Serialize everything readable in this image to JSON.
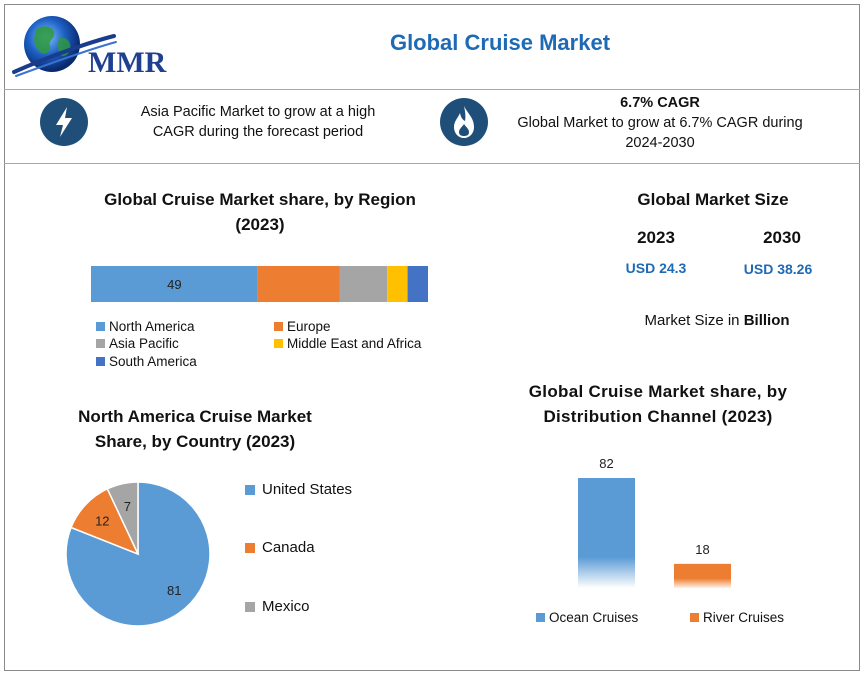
{
  "header": {
    "logo_text": "MMR",
    "title": "Global Cruise Market"
  },
  "highlights": [
    {
      "icon": "lightning-icon",
      "lines": [
        "Asia Pacific Market to grow at a high",
        "CAGR during the forecast period"
      ]
    },
    {
      "icon": "flame-icon",
      "heading": "6.7% CAGR",
      "lines": [
        "Global Market to grow at 6.7% CAGR during",
        "2024-2030"
      ]
    }
  ],
  "market_size": {
    "title": "Global Market Size",
    "years": [
      "2023",
      "2030"
    ],
    "values": [
      "USD 24.3",
      "USD 38.26"
    ],
    "note_prefix": "Market Size in ",
    "note_bold": "Billion"
  },
  "colors": {
    "blue": "#5b9bd5",
    "orange": "#ed7d31",
    "gray": "#a5a5a5",
    "yellow": "#ffc000",
    "dark_blue": "#4472c4",
    "title_blue": "#1f6ab5",
    "icon_navy": "#1f4e79"
  },
  "chart_data": [
    {
      "type": "bar",
      "orientation": "horizontal-stacked",
      "title_lines": [
        "Global Cruise Market share, by Region",
        "(2023)"
      ],
      "categories": [
        "North America",
        "Europe",
        "Asia Pacific",
        "Middle East and Africa",
        "South America"
      ],
      "values": [
        49,
        24,
        14,
        6,
        6
      ],
      "data_labels": [
        "49",
        "",
        "",
        "",
        ""
      ],
      "colors": [
        "#5b9bd5",
        "#ed7d31",
        "#a5a5a5",
        "#ffc000",
        "#4472c4"
      ],
      "legend_position": "bottom"
    },
    {
      "type": "pie",
      "title_lines": [
        "North America Cruise Market",
        "Share, by Country (2023)"
      ],
      "categories": [
        "United States",
        "Canada",
        "Mexico"
      ],
      "values": [
        81,
        12,
        7
      ],
      "colors": [
        "#5b9bd5",
        "#ed7d31",
        "#a5a5a5"
      ],
      "legend_position": "right"
    },
    {
      "type": "bar",
      "title_lines": [
        "Global Cruise Market share, by",
        "Distribution Channel (2023)"
      ],
      "categories": [
        "Ocean Cruises",
        "River Cruises"
      ],
      "values": [
        82,
        18
      ],
      "colors": [
        "#5b9bd5",
        "#ed7d31"
      ],
      "ylim": [
        0,
        82
      ],
      "grid": false,
      "legend_position": "bottom"
    }
  ]
}
